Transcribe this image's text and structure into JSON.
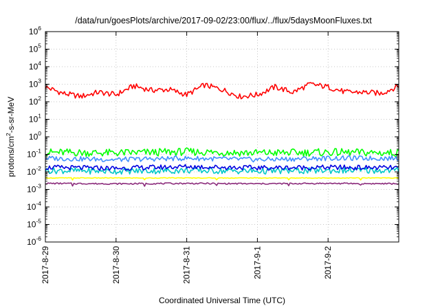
{
  "chart_data": {
    "type": "line",
    "title": "/data/run/goesPlots/archive/2017-09-02/23:00/flux/../flux/5daysMoonFluxes.txt",
    "xlabel": "Coordinated Universal Time (UTC)",
    "ylabel": "protons/cm²-s-sr-MeV",
    "yscale": "log",
    "ylim": [
      1e-06,
      1000000.0
    ],
    "xlim": [
      "2017-08-29",
      "2017-09-03"
    ],
    "x_ticks": [
      "2017-8-29",
      "2017-8-30",
      "2017-8-31",
      "2017-9-1",
      "2017-9-2"
    ],
    "y_ticks": [
      {
        "value": 1e-06,
        "base": "10",
        "exp": "-6"
      },
      {
        "value": 1e-05,
        "base": "10",
        "exp": "-5"
      },
      {
        "value": 0.0001,
        "base": "10",
        "exp": "-4"
      },
      {
        "value": 0.001,
        "base": "10",
        "exp": "-3"
      },
      {
        "value": 0.01,
        "base": "10",
        "exp": "-2"
      },
      {
        "value": 0.1,
        "base": "10",
        "exp": "-1"
      },
      {
        "value": 1,
        "base": "10",
        "exp": "0"
      },
      {
        "value": 10,
        "base": "10",
        "exp": "1"
      },
      {
        "value": 100,
        "base": "10",
        "exp": "2"
      },
      {
        "value": 1000.0,
        "base": "10",
        "exp": "3"
      },
      {
        "value": 10000.0,
        "base": "10",
        "exp": "4"
      },
      {
        "value": 100000.0,
        "base": "10",
        "exp": "5"
      },
      {
        "value": 1000000.0,
        "base": "10",
        "exp": "6"
      }
    ],
    "grid": true,
    "series": [
      {
        "color": "#ff0000",
        "x": [
          "2017-08-29",
          "2017-08-29T06:00",
          "2017-08-29T12:00",
          "2017-08-29T18:00",
          "2017-08-30",
          "2017-08-30T06:00",
          "2017-08-30T12:00",
          "2017-08-30T18:00",
          "2017-08-31",
          "2017-08-31T06:00",
          "2017-08-31T12:00",
          "2017-08-31T18:00",
          "2017-09-01",
          "2017-09-01T06:00",
          "2017-09-01T12:00",
          "2017-09-01T18:00",
          "2017-09-02",
          "2017-09-02T06:00",
          "2017-09-02T12:00",
          "2017-09-02T18:00",
          "2017-09-03"
        ],
        "y": [
          700,
          300,
          200,
          350,
          250,
          800,
          450,
          500,
          250,
          900,
          500,
          200,
          250,
          700,
          350,
          1000,
          700,
          350,
          350,
          300,
          800
        ]
      },
      {
        "color": "#00ff00",
        "x": [
          "2017-08-29",
          "2017-08-30",
          "2017-08-31",
          "2017-09-01",
          "2017-09-02",
          "2017-09-03"
        ],
        "y": [
          0.13,
          0.12,
          0.14,
          0.12,
          0.13,
          0.12
        ]
      },
      {
        "color": "#3f8fff",
        "x": [
          "2017-08-29",
          "2017-08-30",
          "2017-08-31",
          "2017-09-01",
          "2017-09-02",
          "2017-09-03"
        ],
        "y": [
          0.06,
          0.05,
          0.06,
          0.05,
          0.06,
          0.06
        ]
      },
      {
        "color": "#00c8c8",
        "x": [
          "2017-08-29",
          "2017-08-30",
          "2017-08-31",
          "2017-09-01",
          "2017-09-02",
          "2017-09-03"
        ],
        "y": [
          0.012,
          0.011,
          0.012,
          0.011,
          0.012,
          0.012
        ]
      },
      {
        "color": "#0000e0",
        "x": [
          "2017-08-29",
          "2017-08-30",
          "2017-08-31",
          "2017-09-01",
          "2017-09-02",
          "2017-09-03"
        ],
        "y": [
          0.018,
          0.016,
          0.02,
          0.017,
          0.018,
          0.017
        ]
      },
      {
        "color": "#ffff00",
        "x": [
          "2017-08-29",
          "2017-08-30",
          "2017-08-31",
          "2017-09-01",
          "2017-09-02",
          "2017-09-03"
        ],
        "y": [
          0.0045,
          0.0045,
          0.0045,
          0.0045,
          0.0045,
          0.0045
        ]
      },
      {
        "color": "#8b2b7b",
        "x": [
          "2017-08-29",
          "2017-08-30",
          "2017-08-31",
          "2017-09-01",
          "2017-09-02",
          "2017-09-03"
        ],
        "y": [
          0.0022,
          0.0021,
          0.0022,
          0.0021,
          0.0022,
          0.0021
        ]
      }
    ]
  }
}
